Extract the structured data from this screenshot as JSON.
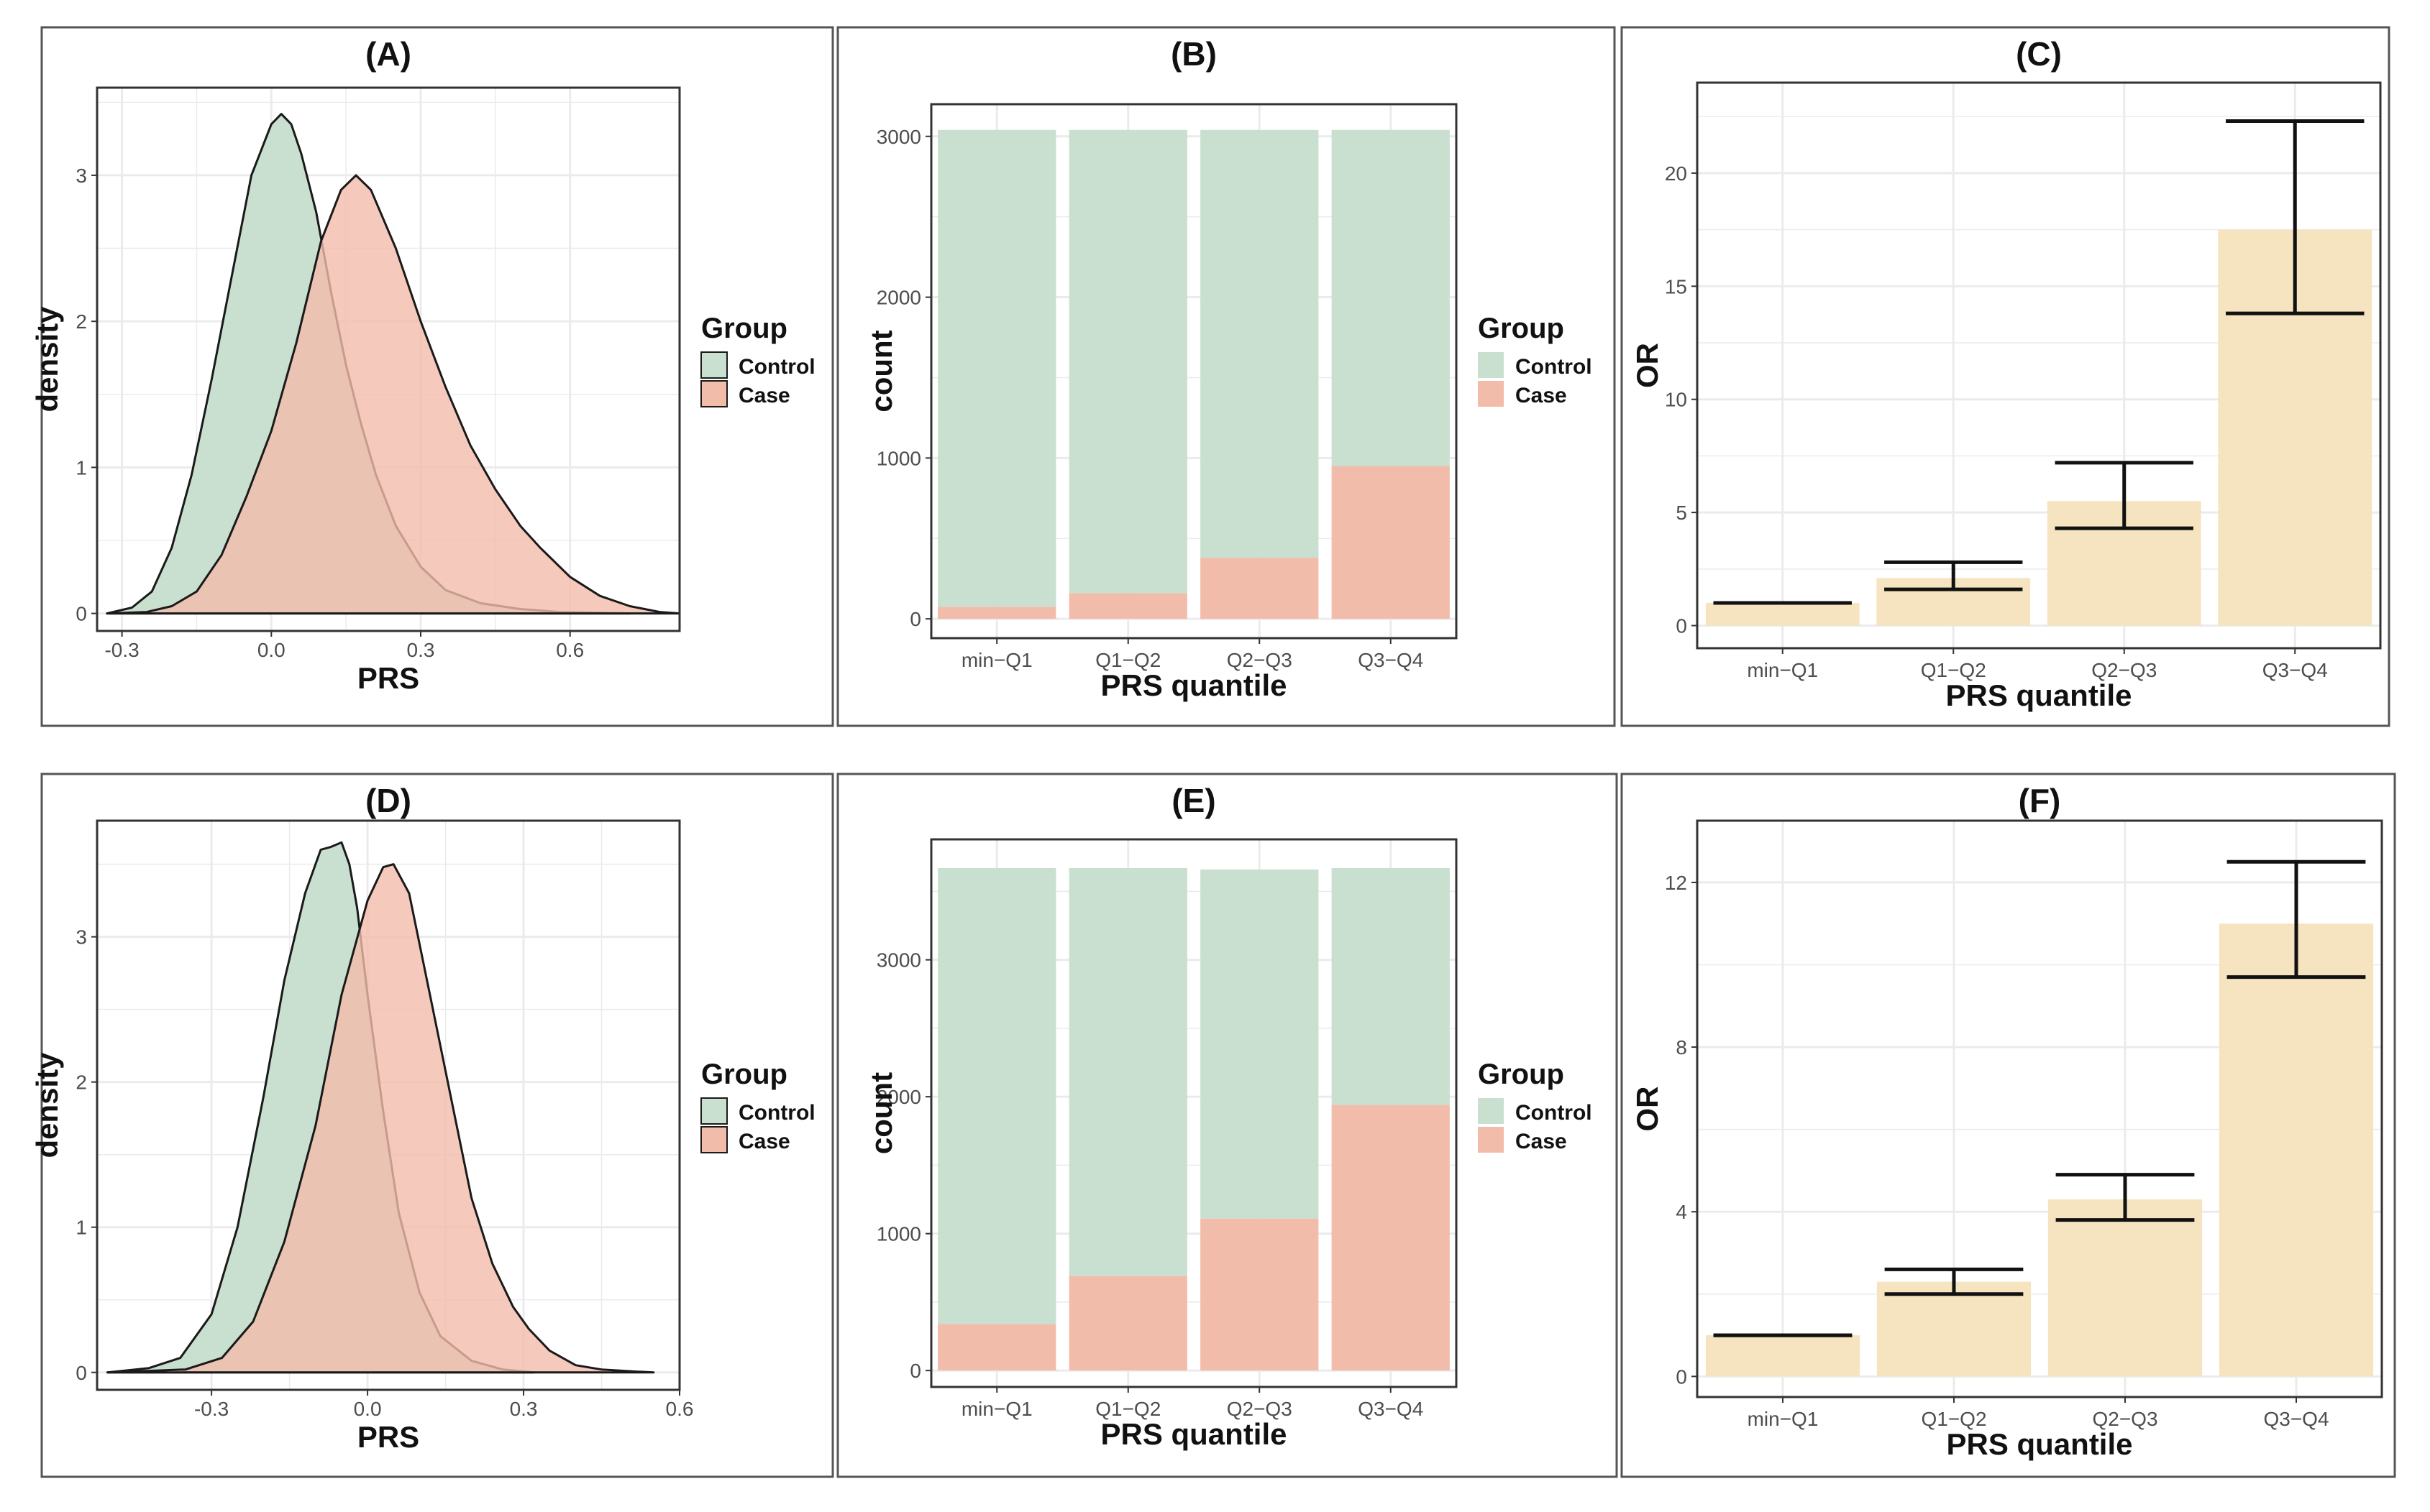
{
  "colors": {
    "control": "#c9dfcf",
    "case": "#f2bcaa",
    "or_bar": "#f6e3c0",
    "grid": "#ebebeb",
    "outline": "#1a1a1a"
  },
  "chart_data": [
    {
      "id": "A",
      "type": "area",
      "title": "(A)",
      "xlabel": "PRS",
      "ylabel": "density",
      "xlim": [
        -0.35,
        0.82
      ],
      "ylim": [
        -0.12,
        3.6
      ],
      "xticks": [
        -0.3,
        0.0,
        0.3,
        0.6
      ],
      "xtick_labels": [
        "-0.3",
        "0.0",
        "0.3",
        "0.6"
      ],
      "yticks": [
        0,
        1,
        2,
        3
      ],
      "ytick_labels": [
        "0",
        "1",
        "2",
        "3"
      ],
      "legend": {
        "title": "Group",
        "entries": [
          "Control",
          "Case"
        ]
      },
      "series": [
        {
          "name": "Control",
          "x": [
            -0.33,
            -0.28,
            -0.24,
            -0.2,
            -0.16,
            -0.12,
            -0.08,
            -0.04,
            0.0,
            0.02,
            0.04,
            0.06,
            0.09,
            0.12,
            0.15,
            0.18,
            0.21,
            0.25,
            0.3,
            0.35,
            0.42,
            0.5,
            0.58,
            0.66,
            0.72
          ],
          "y": [
            0.0,
            0.04,
            0.15,
            0.45,
            0.95,
            1.6,
            2.3,
            3.0,
            3.35,
            3.42,
            3.35,
            3.15,
            2.75,
            2.2,
            1.7,
            1.3,
            0.95,
            0.6,
            0.32,
            0.16,
            0.07,
            0.03,
            0.01,
            0.005,
            0.0
          ]
        },
        {
          "name": "Case",
          "x": [
            -0.33,
            -0.25,
            -0.2,
            -0.15,
            -0.1,
            -0.05,
            0.0,
            0.05,
            0.1,
            0.14,
            0.17,
            0.2,
            0.25,
            0.3,
            0.35,
            0.4,
            0.45,
            0.5,
            0.54,
            0.6,
            0.66,
            0.72,
            0.78,
            0.82
          ],
          "y": [
            0.0,
            0.01,
            0.05,
            0.15,
            0.4,
            0.8,
            1.25,
            1.85,
            2.55,
            2.9,
            3.0,
            2.9,
            2.5,
            2.0,
            1.55,
            1.15,
            0.85,
            0.6,
            0.45,
            0.25,
            0.12,
            0.05,
            0.01,
            0.0
          ]
        }
      ]
    },
    {
      "id": "B",
      "type": "bar",
      "title": "(B)",
      "xlabel": "PRS quantile",
      "ylabel": "count",
      "ylim": [
        -120,
        3200
      ],
      "yticks": [
        0,
        1000,
        2000,
        3000
      ],
      "ytick_labels": [
        "0",
        "1000",
        "2000",
        "3000"
      ],
      "categories": [
        "min−Q1",
        "Q1−Q2",
        "Q2−Q3",
        "Q3−Q4"
      ],
      "legend": {
        "title": "Group",
        "entries": [
          "Control",
          "Case"
        ]
      },
      "series": [
        {
          "name": "Case",
          "values": [
            75,
            160,
            380,
            950
          ]
        },
        {
          "name": "Control",
          "values": [
            2965,
            2880,
            2660,
            2090
          ]
        }
      ]
    },
    {
      "id": "C",
      "type": "bar",
      "title": "(C)",
      "xlabel": "PRS quantile",
      "ylabel": "OR",
      "ylim": [
        -1.0,
        24.0
      ],
      "yticks": [
        0,
        5,
        10,
        15,
        20
      ],
      "ytick_labels": [
        "0",
        "5",
        "10",
        "15",
        "20"
      ],
      "categories": [
        "min−Q1",
        "Q1−Q2",
        "Q2−Q3",
        "Q3−Q4"
      ],
      "values": [
        1.0,
        2.1,
        5.5,
        17.5
      ],
      "ci_lower": [
        1.0,
        1.6,
        4.3,
        13.8
      ],
      "ci_upper": [
        1.0,
        2.8,
        7.2,
        22.3
      ]
    },
    {
      "id": "D",
      "type": "area",
      "title": "(D)",
      "xlabel": "PRS",
      "ylabel": "density",
      "xlim": [
        -0.52,
        0.6
      ],
      "ylim": [
        -0.12,
        3.8
      ],
      "xticks": [
        -0.3,
        0.0,
        0.3,
        0.6
      ],
      "xtick_labels": [
        "-0.3",
        "0.0",
        "0.3",
        "0.6"
      ],
      "yticks": [
        0,
        1,
        2,
        3
      ],
      "ytick_labels": [
        "0",
        "1",
        "2",
        "3"
      ],
      "legend": {
        "title": "Group",
        "entries": [
          "Control",
          "Case"
        ]
      },
      "series": [
        {
          "name": "Control",
          "x": [
            -0.5,
            -0.42,
            -0.36,
            -0.3,
            -0.25,
            -0.2,
            -0.16,
            -0.12,
            -0.09,
            -0.07,
            -0.05,
            -0.035,
            -0.02,
            0.0,
            0.03,
            0.06,
            0.1,
            0.14,
            0.2,
            0.26,
            0.32
          ],
          "y": [
            0.0,
            0.03,
            0.1,
            0.4,
            1.0,
            1.9,
            2.7,
            3.3,
            3.6,
            3.62,
            3.65,
            3.5,
            3.2,
            2.6,
            1.8,
            1.1,
            0.55,
            0.25,
            0.08,
            0.02,
            0.0
          ]
        },
        {
          "name": "Case",
          "x": [
            -0.5,
            -0.35,
            -0.28,
            -0.22,
            -0.16,
            -0.1,
            -0.05,
            0.0,
            0.03,
            0.05,
            0.08,
            0.12,
            0.16,
            0.2,
            0.24,
            0.28,
            0.31,
            0.35,
            0.4,
            0.45,
            0.52,
            0.55
          ],
          "y": [
            0.0,
            0.02,
            0.1,
            0.35,
            0.9,
            1.7,
            2.6,
            3.25,
            3.48,
            3.5,
            3.3,
            2.6,
            1.9,
            1.2,
            0.75,
            0.45,
            0.3,
            0.15,
            0.05,
            0.02,
            0.005,
            0.0
          ]
        }
      ]
    },
    {
      "id": "E",
      "type": "bar",
      "title": "(E)",
      "xlabel": "PRS quantile",
      "ylabel": "count",
      "ylim": [
        -120,
        3880
      ],
      "yticks": [
        0,
        1000,
        2000,
        3000
      ],
      "ytick_labels": [
        "0",
        "1000",
        "2000",
        "3000"
      ],
      "categories": [
        "min−Q1",
        "Q1−Q2",
        "Q2−Q3",
        "Q3−Q4"
      ],
      "legend": {
        "title": "Group",
        "entries": [
          "Control",
          "Case"
        ]
      },
      "series": [
        {
          "name": "Case",
          "values": [
            340,
            690,
            1110,
            1940
          ]
        },
        {
          "name": "Control",
          "values": [
            3330,
            2980,
            2550,
            1730
          ]
        }
      ]
    },
    {
      "id": "F",
      "type": "bar",
      "title": "(F)",
      "xlabel": "PRS quantile",
      "ylabel": "OR",
      "ylim": [
        -0.5,
        13.5
      ],
      "yticks": [
        0,
        4,
        8,
        12
      ],
      "ytick_labels": [
        "0",
        "4",
        "8",
        "12"
      ],
      "categories": [
        "min−Q1",
        "Q1−Q2",
        "Q2−Q3",
        "Q3−Q4"
      ],
      "values": [
        1.0,
        2.3,
        4.3,
        11.0
      ],
      "ci_lower": [
        1.0,
        2.0,
        3.8,
        9.7
      ],
      "ci_upper": [
        1.0,
        2.6,
        4.9,
        12.5
      ]
    }
  ]
}
